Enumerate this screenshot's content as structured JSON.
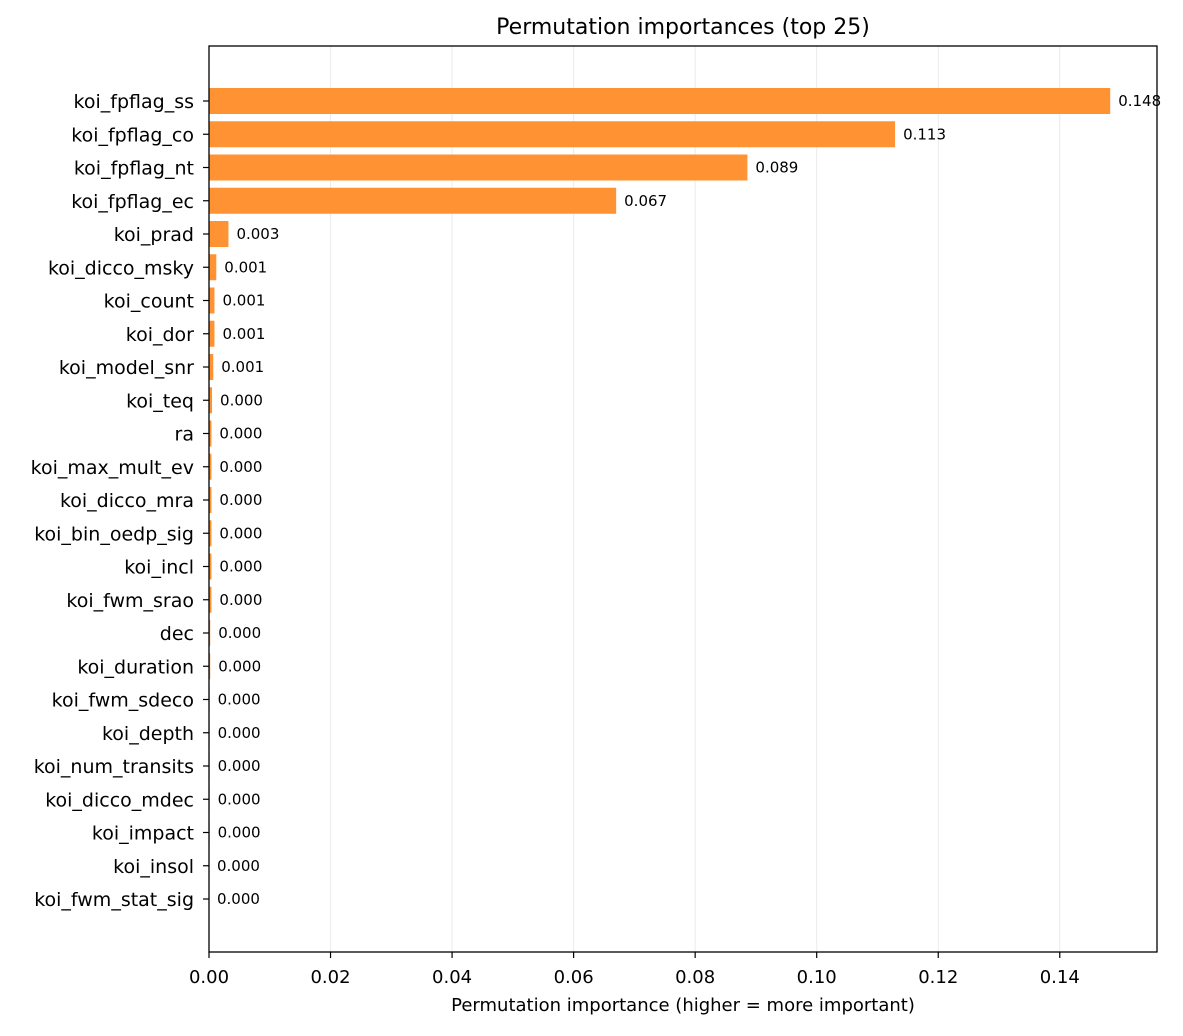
{
  "colors": {
    "bar": "#ff9334",
    "grid": "#ebebeb",
    "axis": "#000000"
  },
  "chart_data": {
    "type": "bar",
    "orientation": "horizontal",
    "title": "Permutation importances (top 25)",
    "xlabel": "Permutation importance (higher = more important)",
    "ylabel": "",
    "xlim": [
      0,
      0.156
    ],
    "xticks": [
      0,
      0.02,
      0.04,
      0.06,
      0.08,
      0.1,
      0.12,
      0.14
    ],
    "xtick_labels": [
      "0.00",
      "0.02",
      "0.04",
      "0.06",
      "0.08",
      "0.10",
      "0.12",
      "0.14"
    ],
    "grid": "vertical",
    "categories": [
      "koi_fpflag_ss",
      "koi_fpflag_co",
      "koi_fpflag_nt",
      "koi_fpflag_ec",
      "koi_prad",
      "koi_dicco_msky",
      "koi_count",
      "koi_dor",
      "koi_model_snr",
      "koi_teq",
      "ra",
      "koi_max_mult_ev",
      "koi_dicco_mra",
      "koi_bin_oedp_sig",
      "koi_incl",
      "koi_fwm_srao",
      "dec",
      "koi_duration",
      "koi_fwm_sdeco",
      "koi_depth",
      "koi_num_transits",
      "koi_dicco_mdec",
      "koi_impact",
      "koi_insol",
      "koi_fwm_stat_sig"
    ],
    "values": [
      0.1483,
      0.1129,
      0.0886,
      0.067,
      0.0032,
      0.0012,
      0.0009,
      0.0009,
      0.0007,
      0.0005,
      0.0004,
      0.0004,
      0.0004,
      0.0004,
      0.0004,
      0.0004,
      0.0002,
      0.0002,
      0.0001,
      0.0001,
      0.0001,
      0.0001,
      0.0001,
      0.0,
      0.0
    ],
    "data_labels": [
      "0.148",
      "0.113",
      "0.089",
      "0.067",
      "0.003",
      "0.001",
      "0.001",
      "0.001",
      "0.001",
      "0.000",
      "0.000",
      "0.000",
      "0.000",
      "0.000",
      "0.000",
      "0.000",
      "0.000",
      "0.000",
      "0.000",
      "0.000",
      "0.000",
      "0.000",
      "0.000",
      "0.000",
      "0.000"
    ]
  }
}
